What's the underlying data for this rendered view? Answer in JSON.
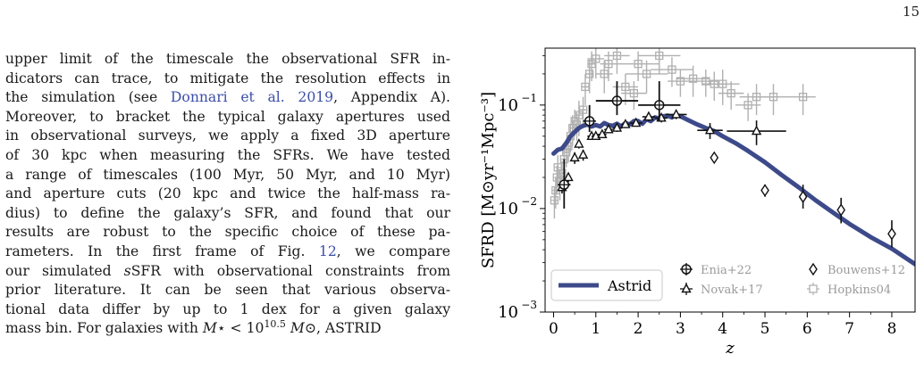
{
  "page": {
    "number": "15"
  },
  "paragraph": [
    [
      {
        "t": "upper limit of the timescale the observational SFR in-"
      }
    ],
    [
      {
        "t": "dicators can trace, to mitigate the resolution effects in"
      }
    ],
    [
      {
        "t": "the simulation (see "
      },
      {
        "t": "Donnari et al. 2019",
        "c": "cite"
      },
      {
        "t": ", Appendix A)."
      }
    ],
    [
      {
        "t": "Moreover, to bracket the typical galaxy apertures used"
      }
    ],
    [
      {
        "t": "in observational surveys, we apply a fixed 3D aperture"
      }
    ],
    [
      {
        "t": "of 30 kpc when measuring the SFRs. We have tested"
      }
    ],
    [
      {
        "t": "a range of timescales (100 Myr, 50 Myr, and 10 Myr)"
      }
    ],
    [
      {
        "t": "and aperture cuts (20 kpc and twice the half-mass ra-"
      }
    ],
    [
      {
        "t": "dius) to define the galaxy’s SFR, and found that our"
      }
    ],
    [
      {
        "t": "results are robust to the specific choice of these pa-"
      }
    ],
    [
      {
        "t": "rameters.  In the first frame of Fig. "
      },
      {
        "t": "12",
        "c": "cite"
      },
      {
        "t": ", we compare"
      }
    ],
    [
      {
        "t": "our simulated "
      },
      {
        "t": "s",
        "c": "ital"
      },
      {
        "t": "SFR with observational constraints from"
      }
    ],
    [
      {
        "t": "prior literature.  It can be seen that various observa-"
      }
    ],
    [
      {
        "t": "tional data differ by up to 1 dex for a given galaxy"
      }
    ],
    [
      {
        "t": "mass bin. For galaxies with "
      },
      {
        "t": "M",
        "c": "ital"
      },
      {
        "t": "⋆ < 10"
      },
      {
        "t": "10.5",
        "sup": true
      },
      {
        "t": " "
      },
      {
        "t": "M",
        "c": "ital"
      },
      {
        "t": "⊙, ASTRID"
      }
    ]
  ],
  "figure": {
    "ylabel": "SFRD [M⊙yr⁻¹Mpc⁻³]",
    "xlabel": "z",
    "xlim": [
      -0.2,
      8.55
    ],
    "ylim_log10": [
      -3,
      -0.45
    ],
    "x_ticks": [
      "0",
      "1",
      "2",
      "3",
      "4",
      "5",
      "6",
      "7",
      "8"
    ],
    "y_ticks": [
      {
        "value": -1,
        "base": "10",
        "exp": "−1"
      },
      {
        "value": -2,
        "base": "10",
        "exp": "−2"
      },
      {
        "value": -3,
        "base": "10",
        "exp": "−3"
      }
    ],
    "colors": {
      "astrid": "#3d4a8a",
      "black": "#111111",
      "gray": "#b0b0b0"
    },
    "legend_left": {
      "label": "Astrid",
      "line_color": "#3d4a8a"
    },
    "legend_right": [
      {
        "label": "Enia+22",
        "marker": "cross-circle",
        "color": "#111111"
      },
      {
        "label": "Bouwens+12",
        "marker": "diamond",
        "color": "#111111"
      },
      {
        "label": "Novak+17",
        "marker": "triangle",
        "color": "#111111"
      },
      {
        "label": "Hopkins04",
        "marker": "square",
        "color": "#b0b0b0"
      }
    ]
  },
  "chart_data": {
    "type": "scatter",
    "title": "",
    "xlabel": "z",
    "ylabel": "SFRD [M⊙yr⁻¹Mpc⁻³]",
    "xlim": [
      -0.2,
      8.55
    ],
    "ylim": [
      0.001,
      0.35
    ],
    "yscale": "log",
    "grid": false,
    "series": [
      {
        "name": "Astrid",
        "kind": "line",
        "x": [
          0,
          0.1,
          0.2,
          0.3,
          0.4,
          0.5,
          0.6,
          0.7,
          0.8,
          0.9,
          1.0,
          1.1,
          1.2,
          1.3,
          1.4,
          1.5,
          1.6,
          1.7,
          1.8,
          1.9,
          2.0,
          2.1,
          2.2,
          2.3,
          2.4,
          2.5,
          2.6,
          2.7,
          2.8,
          2.9,
          3.0,
          3.2,
          3.4,
          3.6,
          3.8,
          4.0,
          4.3,
          4.6,
          5.0,
          5.4,
          5.8,
          6.2,
          6.6,
          7.0,
          7.5,
          8.0,
          8.55
        ],
        "y": [
          0.034,
          0.037,
          0.038,
          0.043,
          0.05,
          0.055,
          0.06,
          0.063,
          0.065,
          0.062,
          0.064,
          0.062,
          0.067,
          0.064,
          0.063,
          0.066,
          0.062,
          0.067,
          0.065,
          0.07,
          0.07,
          0.066,
          0.073,
          0.07,
          0.076,
          0.074,
          0.078,
          0.079,
          0.076,
          0.08,
          0.078,
          0.071,
          0.065,
          0.06,
          0.056,
          0.05,
          0.043,
          0.036,
          0.028,
          0.021,
          0.016,
          0.012,
          0.0092,
          0.0071,
          0.0053,
          0.0041,
          0.0029
        ]
      },
      {
        "name": "Enia+22",
        "kind": "points",
        "x": [
          0.25,
          0.85,
          1.5,
          2.5
        ],
        "y": [
          0.017,
          0.07,
          0.11,
          0.1
        ],
        "yerr_lo": [
          0.007,
          0.015,
          0.03,
          0.03
        ],
        "yerr_hi": [
          0.013,
          0.03,
          0.06,
          0.07
        ],
        "xerr": [
          0.15,
          0.15,
          0.5,
          0.5
        ]
      },
      {
        "name": "Bouwens+12",
        "kind": "points",
        "x": [
          3.8,
          5.0,
          5.9,
          6.8,
          8.0
        ],
        "y": [
          0.031,
          0.015,
          0.013,
          0.0097,
          0.0057
        ],
        "yerr_lo": [
          0.003,
          0.002,
          0.003,
          0.0025,
          0.0015
        ],
        "yerr_hi": [
          0.003,
          0.002,
          0.004,
          0.003,
          0.002
        ],
        "xerr": [
          0,
          0,
          0,
          0,
          0
        ]
      },
      {
        "name": "Novak+17",
        "kind": "points",
        "x": [
          0.2,
          0.35,
          0.5,
          0.6,
          0.7,
          0.9,
          1.0,
          1.15,
          1.3,
          1.5,
          1.7,
          1.95,
          2.25,
          2.55,
          2.9,
          3.7,
          4.8
        ],
        "y": [
          0.016,
          0.02,
          0.031,
          0.042,
          0.033,
          0.05,
          0.05,
          0.052,
          0.058,
          0.06,
          0.065,
          0.067,
          0.077,
          0.075,
          0.081,
          0.057,
          0.056
        ],
        "yerr_lo": [
          0.002,
          0.002,
          0.004,
          0.004,
          0.004,
          0.004,
          0.004,
          0.004,
          0.004,
          0.005,
          0.005,
          0.005,
          0.007,
          0.007,
          0.008,
          0.01,
          0.015
        ],
        "yerr_hi": [
          0.002,
          0.002,
          0.004,
          0.004,
          0.004,
          0.004,
          0.004,
          0.004,
          0.004,
          0.005,
          0.005,
          0.005,
          0.007,
          0.007,
          0.008,
          0.01,
          0.015
        ],
        "xerr": [
          0.05,
          0.05,
          0.05,
          0.05,
          0.05,
          0.1,
          0.1,
          0.1,
          0.1,
          0.1,
          0.1,
          0.15,
          0.15,
          0.15,
          0.25,
          0.3,
          0.7
        ]
      },
      {
        "name": "Hopkins04",
        "kind": "points",
        "x": [
          0.02,
          0.05,
          0.08,
          0.1,
          0.15,
          0.2,
          0.25,
          0.3,
          0.35,
          0.4,
          0.45,
          0.5,
          0.55,
          0.6,
          0.7,
          0.75,
          0.85,
          0.9,
          1.0,
          1.2,
          1.3,
          1.5,
          1.7,
          1.9,
          2.0,
          2.2,
          2.5,
          2.8,
          3.0,
          3.3,
          3.6,
          3.8,
          4.0,
          4.2,
          4.6,
          4.8,
          5.2,
          5.9
        ],
        "y": [
          0.012,
          0.015,
          0.02,
          0.025,
          0.018,
          0.022,
          0.03,
          0.035,
          0.04,
          0.05,
          0.06,
          0.07,
          0.065,
          0.08,
          0.09,
          0.15,
          0.2,
          0.25,
          0.28,
          0.2,
          0.25,
          0.3,
          0.15,
          0.13,
          0.25,
          0.2,
          0.3,
          0.22,
          0.17,
          0.18,
          0.17,
          0.16,
          0.16,
          0.13,
          0.1,
          0.12,
          0.12,
          0.12
        ],
        "yerr_lo": [
          0.004,
          0.005,
          0.006,
          0.008,
          0.006,
          0.007,
          0.01,
          0.01,
          0.012,
          0.015,
          0.02,
          0.02,
          0.02,
          0.03,
          0.03,
          0.05,
          0.07,
          0.08,
          0.1,
          0.07,
          0.08,
          0.1,
          0.05,
          0.04,
          0.08,
          0.07,
          0.1,
          0.07,
          0.05,
          0.06,
          0.05,
          0.05,
          0.06,
          0.04,
          0.03,
          0.04,
          0.04,
          0.04
        ],
        "yerr_hi": [
          0.004,
          0.005,
          0.006,
          0.008,
          0.006,
          0.007,
          0.01,
          0.01,
          0.012,
          0.015,
          0.02,
          0.02,
          0.02,
          0.03,
          0.03,
          0.05,
          0.07,
          0.08,
          0.1,
          0.07,
          0.08,
          0.1,
          0.05,
          0.04,
          0.08,
          0.07,
          0.1,
          0.07,
          0.05,
          0.06,
          0.05,
          0.05,
          0.06,
          0.04,
          0.03,
          0.04,
          0.04,
          0.04
        ],
        "xerr": [
          0.02,
          0.03,
          0.03,
          0.03,
          0.05,
          0.05,
          0.05,
          0.05,
          0.05,
          0.05,
          0.05,
          0.05,
          0.05,
          0.05,
          0.1,
          0.1,
          0.1,
          0.1,
          0.2,
          0.2,
          0.2,
          0.3,
          0.3,
          0.3,
          0.5,
          0.5,
          0.5,
          0.5,
          0.3,
          0.4,
          0.3,
          0.3,
          0.4,
          0.3,
          0.3,
          0.4,
          0.4,
          0.3
        ]
      }
    ]
  }
}
